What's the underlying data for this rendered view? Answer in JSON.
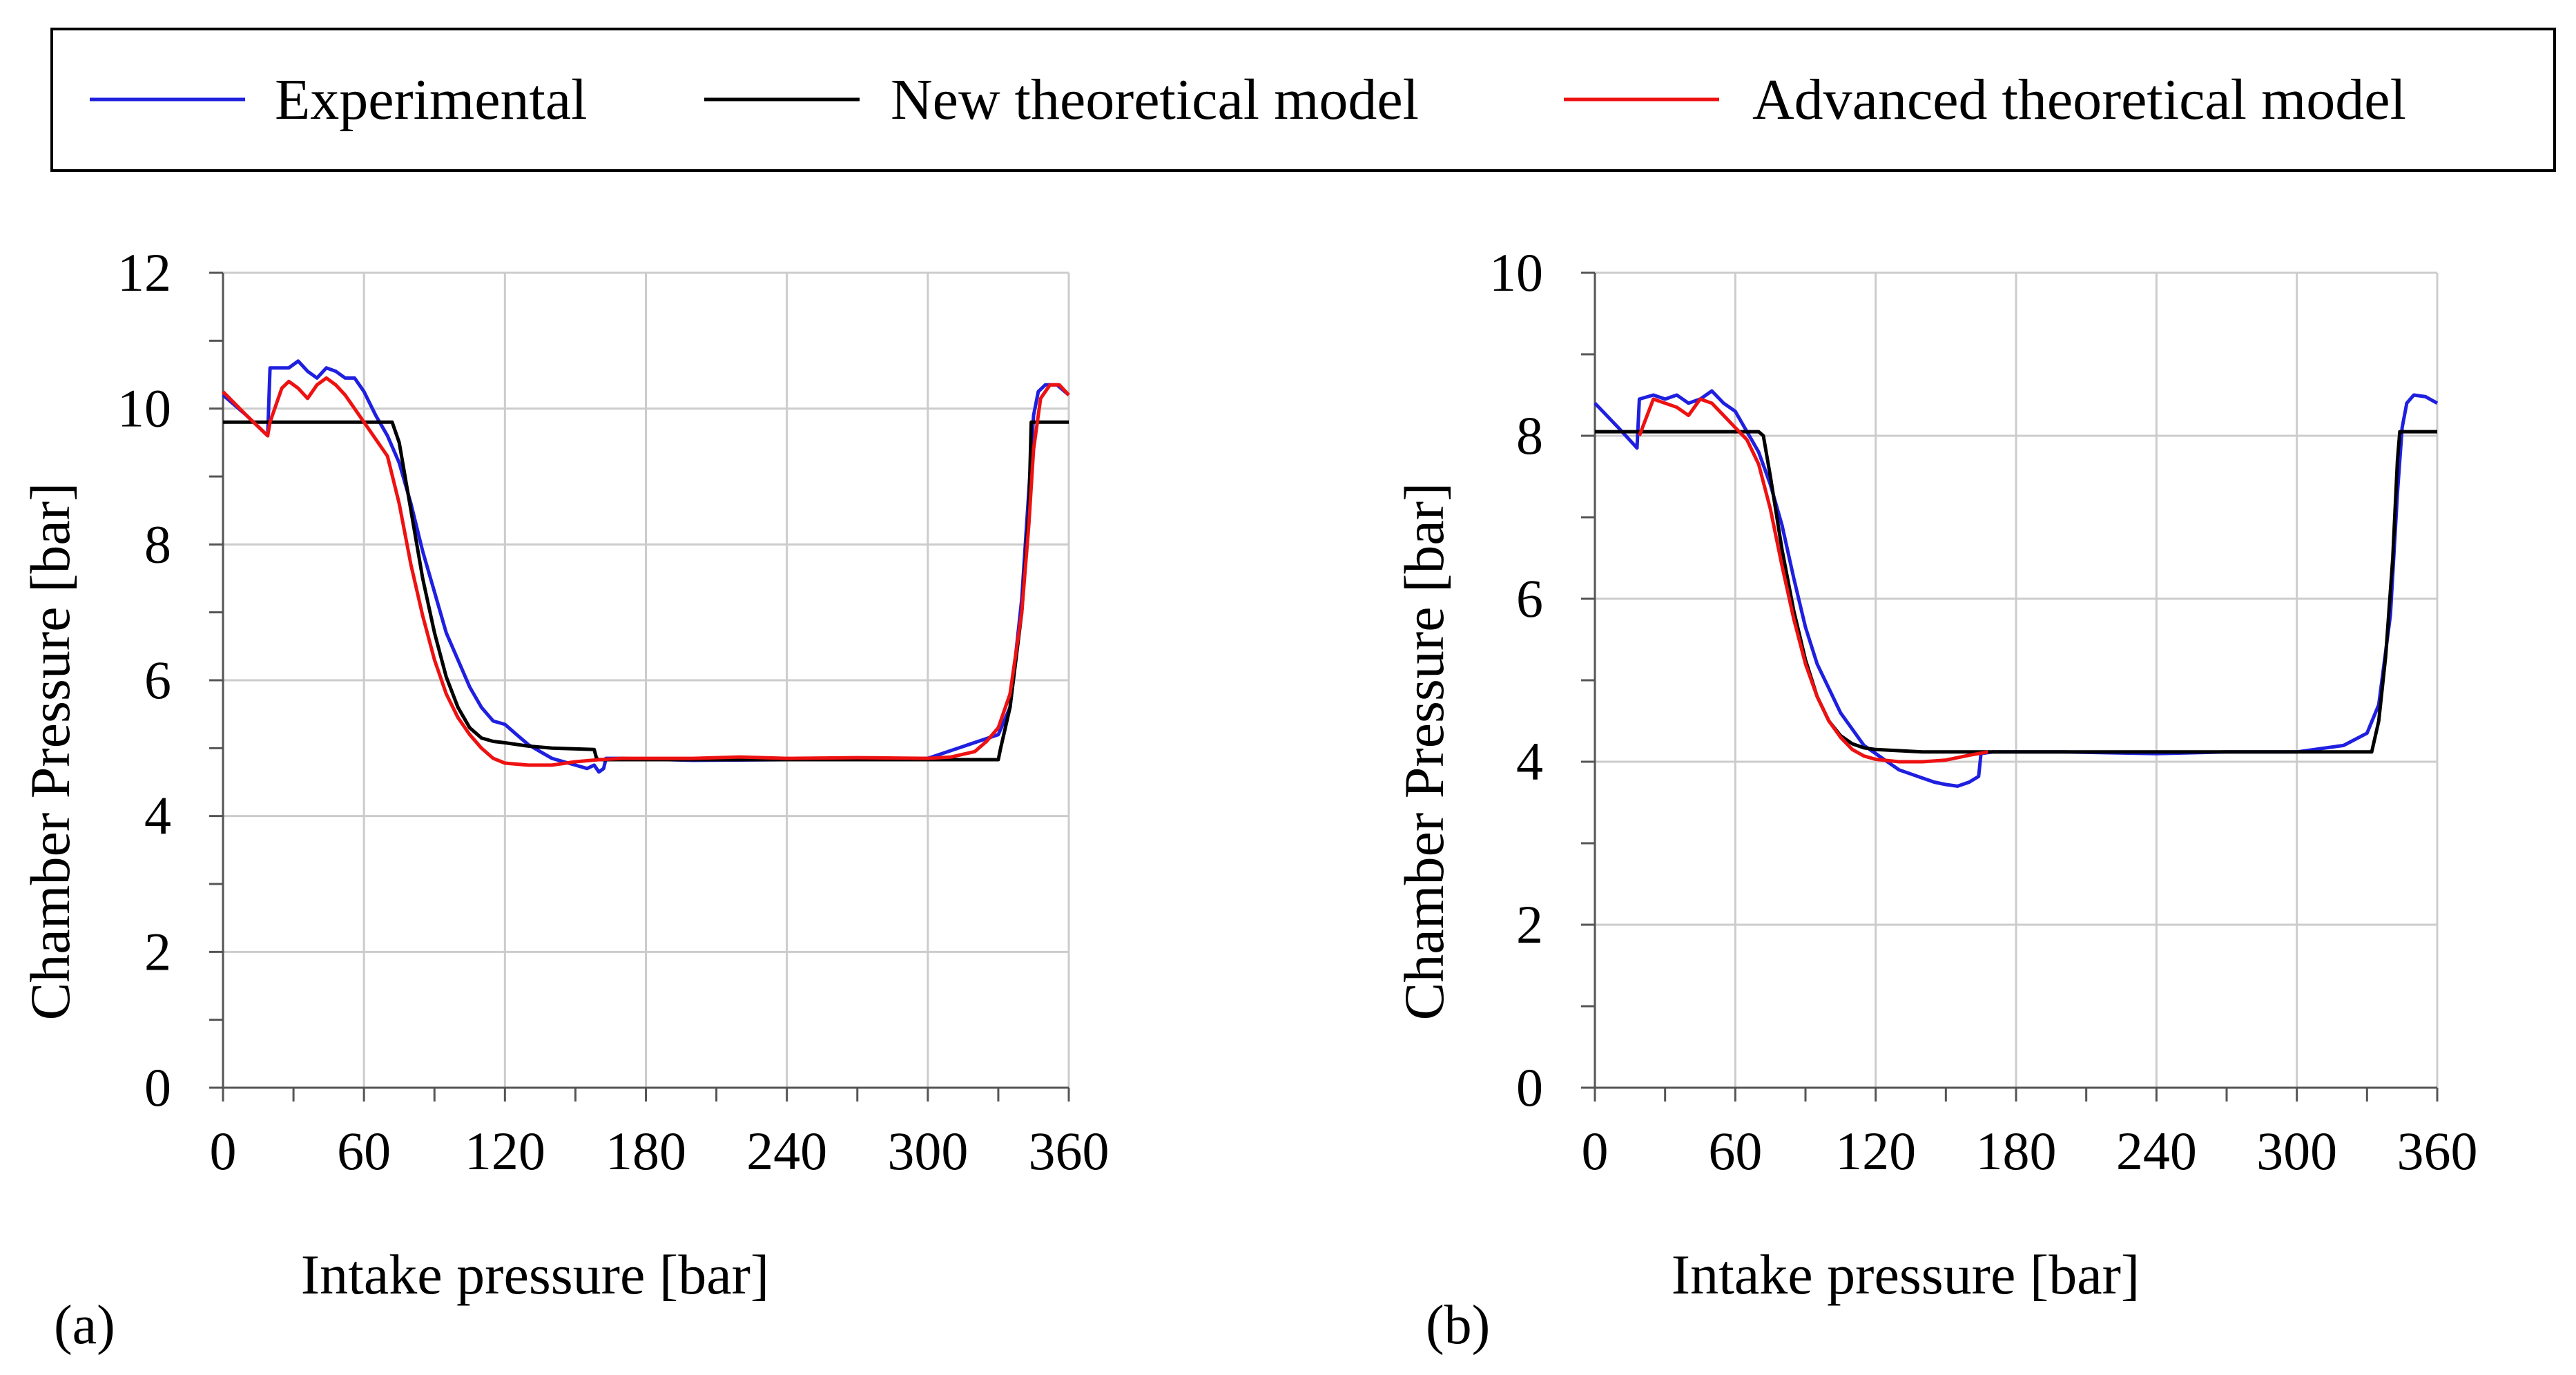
{
  "legend": {
    "entries": [
      {
        "label": "Experimental",
        "color": "#1f1fe0"
      },
      {
        "label": "New theoretical model",
        "color": "#000000"
      },
      {
        "label": "Advanced theoretical model",
        "color": "#ee1111"
      }
    ]
  },
  "panels": [
    {
      "label": "(a)"
    },
    {
      "label": "(b)"
    }
  ],
  "chart_data": [
    {
      "type": "line",
      "panel": "(a)",
      "xlabel": "Intake pressure [bar]",
      "ylabel": "Chamber Pressure [bar]",
      "xlim": [
        0,
        360
      ],
      "ylim": [
        0,
        12
      ],
      "xticks": [
        0,
        60,
        120,
        180,
        240,
        300,
        360
      ],
      "yticks": [
        0,
        2,
        4,
        6,
        8,
        10,
        12
      ],
      "xtick_labels": [
        "0",
        "60",
        "120",
        "180",
        "240",
        "300",
        "360"
      ],
      "ytick_labels": [
        "0",
        "2",
        "4",
        "6",
        "8",
        "10",
        "12"
      ],
      "grid": true,
      "series": [
        {
          "name": "Experimental",
          "color": "#1f1fe0",
          "x": [
            0,
            10,
            19,
            20,
            28,
            32,
            36,
            40,
            44,
            48,
            52,
            56,
            60,
            65,
            70,
            75,
            80,
            85,
            90,
            95,
            100,
            105,
            110,
            115,
            120,
            125,
            130,
            135,
            140,
            145,
            150,
            155,
            158,
            160,
            162,
            163,
            165,
            170,
            200,
            240,
            270,
            300,
            330,
            335,
            340,
            343,
            345,
            347,
            350,
            355,
            360
          ],
          "y": [
            10.2,
            9.9,
            9.6,
            10.6,
            10.6,
            10.7,
            10.55,
            10.45,
            10.6,
            10.55,
            10.45,
            10.45,
            10.25,
            9.9,
            9.6,
            9.2,
            8.6,
            7.9,
            7.3,
            6.7,
            6.3,
            5.9,
            5.6,
            5.4,
            5.35,
            5.2,
            5.05,
            4.95,
            4.85,
            4.8,
            4.75,
            4.7,
            4.75,
            4.65,
            4.7,
            4.85,
            4.85,
            4.85,
            4.82,
            4.83,
            4.85,
            4.85,
            5.2,
            5.6,
            7.2,
            8.8,
            9.9,
            10.25,
            10.35,
            10.35,
            10.2
          ]
        },
        {
          "name": "New theoretical model",
          "color": "#000000",
          "x": [
            0,
            70,
            72,
            75,
            80,
            85,
            90,
            95,
            100,
            105,
            110,
            115,
            120,
            130,
            140,
            158,
            159,
            160,
            200,
            240,
            300,
            330,
            331,
            335,
            340,
            343,
            344,
            360
          ],
          "y": [
            9.8,
            9.8,
            9.8,
            9.5,
            8.5,
            7.5,
            6.7,
            6.05,
            5.6,
            5.3,
            5.15,
            5.1,
            5.08,
            5.03,
            5.0,
            4.98,
            4.85,
            4.83,
            4.83,
            4.83,
            4.83,
            4.83,
            5.0,
            5.6,
            7.0,
            8.5,
            9.8,
            9.8
          ]
        },
        {
          "name": "Advanced theoretical model",
          "color": "#ee1111",
          "x": [
            0,
            10,
            19,
            20,
            25,
            28,
            32,
            36,
            40,
            44,
            48,
            52,
            56,
            60,
            65,
            70,
            75,
            80,
            85,
            90,
            95,
            100,
            105,
            110,
            115,
            120,
            130,
            140,
            150,
            160,
            170,
            200,
            220,
            240,
            270,
            300,
            310,
            320,
            325,
            330,
            335,
            340,
            343,
            345,
            348,
            352,
            356,
            360
          ],
          "y": [
            10.25,
            9.9,
            9.6,
            9.8,
            10.3,
            10.4,
            10.3,
            10.15,
            10.35,
            10.45,
            10.35,
            10.2,
            10.0,
            9.8,
            9.55,
            9.3,
            8.6,
            7.7,
            6.95,
            6.3,
            5.8,
            5.45,
            5.2,
            5.0,
            4.85,
            4.78,
            4.75,
            4.75,
            4.8,
            4.83,
            4.85,
            4.85,
            4.87,
            4.85,
            4.86,
            4.85,
            4.87,
            4.95,
            5.1,
            5.3,
            5.8,
            7.0,
            8.3,
            9.4,
            10.15,
            10.35,
            10.35,
            10.2
          ]
        }
      ]
    },
    {
      "type": "line",
      "panel": "(b)",
      "xlabel": "Intake pressure [bar]",
      "ylabel": "Chamber Pressure [bar]",
      "xlim": [
        0,
        360
      ],
      "ylim": [
        0,
        10
      ],
      "xticks": [
        0,
        60,
        120,
        180,
        240,
        300,
        360
      ],
      "yticks": [
        0,
        2,
        4,
        6,
        8,
        10
      ],
      "xtick_labels": [
        "0",
        "60",
        "120",
        "180",
        "240",
        "300",
        "360"
      ],
      "ytick_labels": [
        "0",
        "2",
        "4",
        "6",
        "8",
        "10"
      ],
      "grid": true,
      "series": [
        {
          "name": "Experimental",
          "color": "#1f1fe0",
          "x": [
            0,
            10,
            18,
            19,
            25,
            30,
            35,
            40,
            45,
            50,
            55,
            60,
            65,
            70,
            75,
            80,
            85,
            90,
            95,
            100,
            105,
            110,
            115,
            120,
            125,
            130,
            135,
            140,
            145,
            150,
            155,
            160,
            164,
            165,
            170,
            200,
            240,
            270,
            300,
            320,
            330,
            335,
            340,
            343,
            345,
            347,
            350,
            355,
            360
          ],
          "y": [
            8.4,
            8.1,
            7.85,
            8.45,
            8.5,
            8.45,
            8.5,
            8.4,
            8.45,
            8.55,
            8.4,
            8.3,
            8.05,
            7.8,
            7.4,
            6.9,
            6.25,
            5.65,
            5.2,
            4.9,
            4.6,
            4.4,
            4.2,
            4.1,
            4.0,
            3.9,
            3.85,
            3.8,
            3.75,
            3.72,
            3.7,
            3.75,
            3.82,
            4.1,
            4.12,
            4.12,
            4.1,
            4.12,
            4.12,
            4.2,
            4.35,
            4.7,
            5.8,
            7.3,
            8.1,
            8.4,
            8.5,
            8.48,
            8.4
          ]
        },
        {
          "name": "New theoretical model",
          "color": "#000000",
          "x": [
            0,
            70,
            72,
            75,
            80,
            85,
            90,
            95,
            100,
            105,
            110,
            115,
            120,
            140,
            160,
            170,
            200,
            240,
            300,
            332,
            335,
            338,
            341,
            343,
            344,
            360
          ],
          "y": [
            8.05,
            8.05,
            8.0,
            7.5,
            6.6,
            5.85,
            5.25,
            4.8,
            4.5,
            4.32,
            4.22,
            4.17,
            4.15,
            4.12,
            4.12,
            4.12,
            4.12,
            4.12,
            4.12,
            4.12,
            4.5,
            5.3,
            6.5,
            7.7,
            8.05,
            8.05
          ]
        },
        {
          "name": "Advanced theoretical model",
          "color": "#ee1111",
          "x": [
            19,
            25,
            30,
            35,
            40,
            45,
            50,
            55,
            60,
            65,
            70,
            75,
            80,
            85,
            90,
            95,
            100,
            105,
            110,
            115,
            120,
            130,
            140,
            150,
            160,
            168
          ],
          "y": [
            8.0,
            8.45,
            8.4,
            8.35,
            8.25,
            8.45,
            8.4,
            8.25,
            8.1,
            7.95,
            7.65,
            7.1,
            6.4,
            5.75,
            5.2,
            4.8,
            4.5,
            4.3,
            4.15,
            4.07,
            4.03,
            4.0,
            4.0,
            4.02,
            4.08,
            4.12
          ]
        }
      ]
    }
  ]
}
